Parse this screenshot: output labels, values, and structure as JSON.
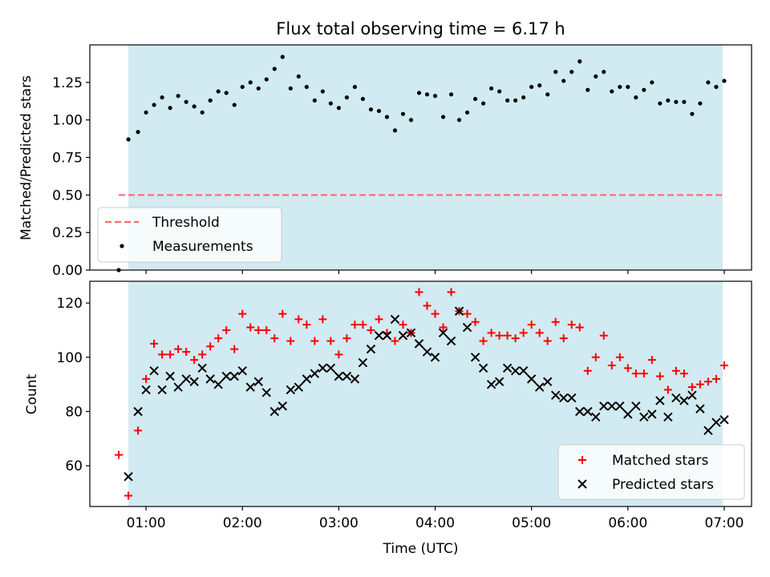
{
  "chart_data": [
    {
      "type": "scatter",
      "title": "Flux total observing time = 6.17 h",
      "xlabel": "",
      "ylabel": "Matched/Predicted stars",
      "ylim": [
        0,
        1.5
      ],
      "y_ticks": [
        "0.00",
        "0.25",
        "0.50",
        "0.75",
        "1.00",
        "1.25"
      ],
      "y_tick_values": [
        0,
        0.25,
        0.5,
        0.75,
        1.0,
        1.25
      ],
      "x_range": [
        "00:25",
        "07:17"
      ],
      "observing_window": [
        "00:49",
        "06:59"
      ],
      "colors": {
        "shade": "#add8e6",
        "threshold": "#ff6666",
        "points": "#000000"
      },
      "legend": {
        "placement": "lower-left",
        "entries": [
          "Threshold",
          "Measurements"
        ]
      },
      "threshold": {
        "name": "Threshold",
        "y": 0.5,
        "x": [
          "00:43",
          "06:59"
        ]
      },
      "series": [
        {
          "name": "Measurements",
          "points": [
            [
              "00:43",
              0.0
            ],
            [
              "00:49",
              0.87
            ],
            [
              "00:55",
              0.92
            ],
            [
              "01:00",
              1.05
            ],
            [
              "01:05",
              1.1
            ],
            [
              "01:10",
              1.15
            ],
            [
              "01:15",
              1.08
            ],
            [
              "01:20",
              1.16
            ],
            [
              "01:25",
              1.12
            ],
            [
              "01:30",
              1.09
            ],
            [
              "01:35",
              1.05
            ],
            [
              "01:40",
              1.13
            ],
            [
              "01:45",
              1.19
            ],
            [
              "01:50",
              1.18
            ],
            [
              "01:55",
              1.1
            ],
            [
              "02:00",
              1.22
            ],
            [
              "02:05",
              1.25
            ],
            [
              "02:10",
              1.21
            ],
            [
              "02:15",
              1.27
            ],
            [
              "02:20",
              1.34
            ],
            [
              "02:25",
              1.42
            ],
            [
              "02:30",
              1.21
            ],
            [
              "02:35",
              1.29
            ],
            [
              "02:40",
              1.22
            ],
            [
              "02:45",
              1.13
            ],
            [
              "02:50",
              1.19
            ],
            [
              "02:55",
              1.11
            ],
            [
              "03:00",
              1.08
            ],
            [
              "03:05",
              1.15
            ],
            [
              "03:10",
              1.22
            ],
            [
              "03:15",
              1.14
            ],
            [
              "03:20",
              1.07
            ],
            [
              "03:25",
              1.06
            ],
            [
              "03:30",
              1.02
            ],
            [
              "03:35",
              0.93
            ],
            [
              "03:40",
              1.04
            ],
            [
              "03:45",
              1.0
            ],
            [
              "03:50",
              1.18
            ],
            [
              "03:55",
              1.17
            ],
            [
              "04:00",
              1.16
            ],
            [
              "04:05",
              1.02
            ],
            [
              "04:10",
              1.17
            ],
            [
              "04:15",
              1.0
            ],
            [
              "04:20",
              1.05
            ],
            [
              "04:25",
              1.14
            ],
            [
              "04:30",
              1.11
            ],
            [
              "04:35",
              1.21
            ],
            [
              "04:40",
              1.19
            ],
            [
              "04:45",
              1.13
            ],
            [
              "04:50",
              1.13
            ],
            [
              "04:55",
              1.15
            ],
            [
              "05:00",
              1.22
            ],
            [
              "05:05",
              1.23
            ],
            [
              "05:10",
              1.17
            ],
            [
              "05:15",
              1.32
            ],
            [
              "05:20",
              1.26
            ],
            [
              "05:25",
              1.32
            ],
            [
              "05:30",
              1.39
            ],
            [
              "05:35",
              1.2
            ],
            [
              "05:40",
              1.29
            ],
            [
              "05:45",
              1.32
            ],
            [
              "05:50",
              1.19
            ],
            [
              "05:55",
              1.22
            ],
            [
              "06:00",
              1.22
            ],
            [
              "06:05",
              1.15
            ],
            [
              "06:10",
              1.2
            ],
            [
              "06:15",
              1.25
            ],
            [
              "06:20",
              1.11
            ],
            [
              "06:25",
              1.13
            ],
            [
              "06:30",
              1.12
            ],
            [
              "06:35",
              1.12
            ],
            [
              "06:40",
              1.04
            ],
            [
              "06:45",
              1.11
            ],
            [
              "06:50",
              1.25
            ],
            [
              "06:55",
              1.22
            ],
            [
              "07:00",
              1.26
            ]
          ]
        }
      ]
    },
    {
      "type": "scatter",
      "title": "",
      "xlabel": "Time (UTC)",
      "ylabel": "Count",
      "ylim": [
        45,
        128
      ],
      "y_ticks": [
        "60",
        "80",
        "100",
        "120"
      ],
      "y_tick_values": [
        60,
        80,
        100,
        120
      ],
      "x_ticks": [
        "01:00",
        "02:00",
        "03:00",
        "04:00",
        "05:00",
        "06:00",
        "07:00"
      ],
      "x_tick_values": [
        "01:00",
        "02:00",
        "03:00",
        "04:00",
        "05:00",
        "06:00",
        "07:00"
      ],
      "x_range": [
        "00:25",
        "07:17"
      ],
      "observing_window": [
        "00:49",
        "06:59"
      ],
      "colors": {
        "shade": "#add8e6",
        "matched": "#ff0000",
        "predicted": "#000000"
      },
      "legend": {
        "placement": "lower-right",
        "entries": [
          "Matched stars",
          "Predicted stars"
        ]
      },
      "series": [
        {
          "name": "Matched stars",
          "marker": "plus",
          "points": [
            [
              "00:43",
              64
            ],
            [
              "00:49",
              49
            ],
            [
              "00:55",
              73
            ],
            [
              "01:00",
              92
            ],
            [
              "01:05",
              105
            ],
            [
              "01:10",
              101
            ],
            [
              "01:15",
              101
            ],
            [
              "01:20",
              103
            ],
            [
              "01:25",
              102
            ],
            [
              "01:30",
              99
            ],
            [
              "01:35",
              101
            ],
            [
              "01:40",
              104
            ],
            [
              "01:45",
              107
            ],
            [
              "01:50",
              110
            ],
            [
              "01:55",
              103
            ],
            [
              "02:00",
              116
            ],
            [
              "02:05",
              111
            ],
            [
              "02:10",
              110
            ],
            [
              "02:15",
              110
            ],
            [
              "02:20",
              107
            ],
            [
              "02:25",
              116
            ],
            [
              "02:30",
              106
            ],
            [
              "02:35",
              114
            ],
            [
              "02:40",
              112
            ],
            [
              "02:45",
              106
            ],
            [
              "02:50",
              114
            ],
            [
              "02:55",
              106
            ],
            [
              "03:00",
              101
            ],
            [
              "03:05",
              107
            ],
            [
              "03:10",
              112
            ],
            [
              "03:15",
              112
            ],
            [
              "03:20",
              110
            ],
            [
              "03:25",
              114
            ],
            [
              "03:30",
              109
            ],
            [
              "03:35",
              106
            ],
            [
              "03:40",
              112
            ],
            [
              "03:45",
              109
            ],
            [
              "03:50",
              124
            ],
            [
              "03:55",
              119
            ],
            [
              "04:00",
              116
            ],
            [
              "04:05",
              111
            ],
            [
              "04:10",
              124
            ],
            [
              "04:15",
              117
            ],
            [
              "04:20",
              116
            ],
            [
              "04:25",
              113
            ],
            [
              "04:30",
              106
            ],
            [
              "04:35",
              109
            ],
            [
              "04:40",
              108
            ],
            [
              "04:45",
              108
            ],
            [
              "04:50",
              107
            ],
            [
              "04:55",
              109
            ],
            [
              "05:00",
              112
            ],
            [
              "05:05",
              109
            ],
            [
              "05:10",
              106
            ],
            [
              "05:15",
              113
            ],
            [
              "05:20",
              107
            ],
            [
              "05:25",
              112
            ],
            [
              "05:30",
              111
            ],
            [
              "05:35",
              95
            ],
            [
              "05:40",
              100
            ],
            [
              "05:45",
              108
            ],
            [
              "05:50",
              97
            ],
            [
              "05:55",
              100
            ],
            [
              "06:00",
              96
            ],
            [
              "06:05",
              94
            ],
            [
              "06:10",
              94
            ],
            [
              "06:15",
              99
            ],
            [
              "06:20",
              93
            ],
            [
              "06:25",
              88
            ],
            [
              "06:30",
              95
            ],
            [
              "06:35",
              94
            ],
            [
              "06:40",
              89
            ],
            [
              "06:45",
              90
            ],
            [
              "06:50",
              91
            ],
            [
              "06:55",
              92
            ],
            [
              "07:00",
              97
            ]
          ]
        },
        {
          "name": "Predicted stars",
          "marker": "x",
          "points": [
            [
              "00:49",
              56
            ],
            [
              "00:55",
              80
            ],
            [
              "01:00",
              88
            ],
            [
              "01:05",
              95
            ],
            [
              "01:10",
              88
            ],
            [
              "01:15",
              93
            ],
            [
              "01:20",
              89
            ],
            [
              "01:25",
              92
            ],
            [
              "01:30",
              91
            ],
            [
              "01:35",
              96
            ],
            [
              "01:40",
              92
            ],
            [
              "01:45",
              90
            ],
            [
              "01:50",
              93
            ],
            [
              "01:55",
              93
            ],
            [
              "02:00",
              95
            ],
            [
              "02:05",
              89
            ],
            [
              "02:10",
              91
            ],
            [
              "02:15",
              87
            ],
            [
              "02:20",
              80
            ],
            [
              "02:25",
              82
            ],
            [
              "02:30",
              88
            ],
            [
              "02:35",
              89
            ],
            [
              "02:40",
              92
            ],
            [
              "02:45",
              94
            ],
            [
              "02:50",
              96
            ],
            [
              "02:55",
              96
            ],
            [
              "03:00",
              93
            ],
            [
              "03:05",
              93
            ],
            [
              "03:10",
              92
            ],
            [
              "03:15",
              98
            ],
            [
              "03:20",
              103
            ],
            [
              "03:25",
              108
            ],
            [
              "03:30",
              108
            ],
            [
              "03:35",
              114
            ],
            [
              "03:40",
              108
            ],
            [
              "03:45",
              109
            ],
            [
              "03:50",
              105
            ],
            [
              "03:55",
              102
            ],
            [
              "04:00",
              100
            ],
            [
              "04:05",
              109
            ],
            [
              "04:10",
              106
            ],
            [
              "04:15",
              117
            ],
            [
              "04:20",
              111
            ],
            [
              "04:25",
              100
            ],
            [
              "04:30",
              96
            ],
            [
              "04:35",
              90
            ],
            [
              "04:40",
              91
            ],
            [
              "04:45",
              96
            ],
            [
              "04:50",
              95
            ],
            [
              "04:55",
              95
            ],
            [
              "05:00",
              92
            ],
            [
              "05:05",
              89
            ],
            [
              "05:10",
              91
            ],
            [
              "05:15",
              86
            ],
            [
              "05:20",
              85
            ],
            [
              "05:25",
              85
            ],
            [
              "05:30",
              80
            ],
            [
              "05:35",
              80
            ],
            [
              "05:40",
              78
            ],
            [
              "05:45",
              82
            ],
            [
              "05:50",
              82
            ],
            [
              "05:55",
              82
            ],
            [
              "06:00",
              79
            ],
            [
              "06:05",
              82
            ],
            [
              "06:10",
              78
            ],
            [
              "06:15",
              79
            ],
            [
              "06:20",
              84
            ],
            [
              "06:25",
              78
            ],
            [
              "06:30",
              85
            ],
            [
              "06:35",
              84
            ],
            [
              "06:40",
              86
            ],
            [
              "06:45",
              81
            ],
            [
              "06:50",
              73
            ],
            [
              "06:55",
              76
            ],
            [
              "07:00",
              77
            ]
          ]
        }
      ]
    }
  ]
}
